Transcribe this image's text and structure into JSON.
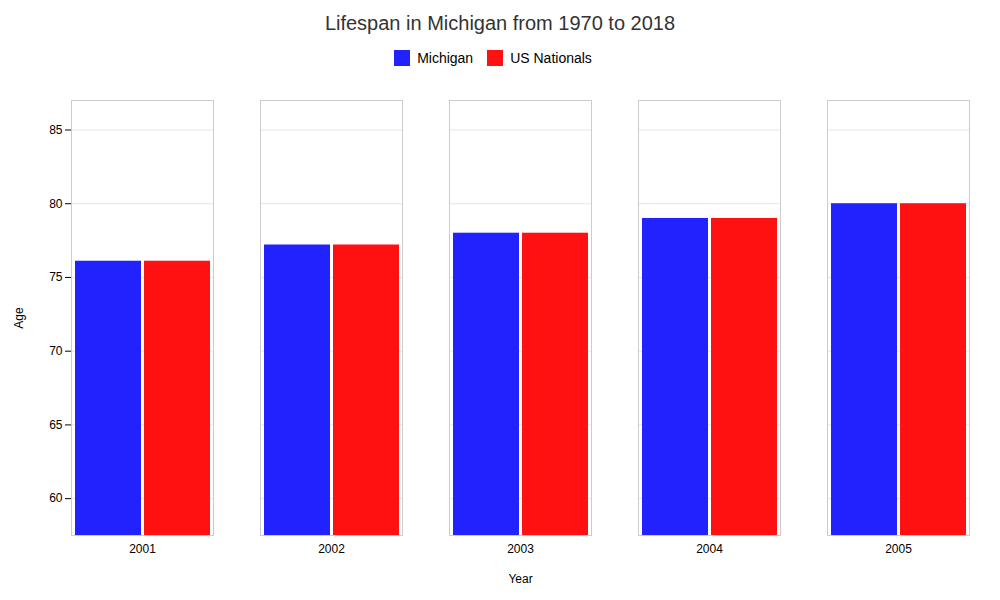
{
  "chart_data": {
    "type": "bar",
    "title": "Lifespan in Michigan from 1970 to 2018",
    "xlabel": "Year",
    "ylabel": "Age",
    "categories": [
      "2001",
      "2002",
      "2003",
      "2004",
      "2005"
    ],
    "series": [
      {
        "name": "Michigan",
        "color": "#2222ff",
        "values": [
          76.1,
          77.2,
          78.0,
          79.0,
          80.0
        ]
      },
      {
        "name": "US Nationals",
        "color": "#ff1111",
        "values": [
          76.1,
          77.2,
          78.0,
          79.0,
          80.0
        ]
      }
    ],
    "ylim": [
      57.5,
      87
    ],
    "yticks": [
      60,
      65,
      70,
      75,
      80,
      85
    ],
    "grid": true,
    "legend": "top"
  }
}
